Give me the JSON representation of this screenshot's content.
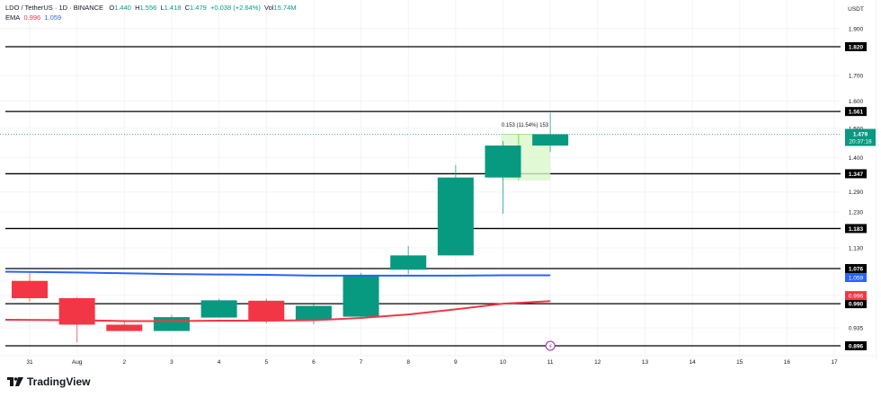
{
  "header": {
    "symbol": "LDO / TetherUS · 1D · BINANCE",
    "open_label": "O",
    "open": "1.440",
    "high_label": "H",
    "high": "1.556",
    "low_label": "L",
    "low": "1.418",
    "close_label": "C",
    "close": "1.479",
    "change": "+0.038 (+2.64%)",
    "vol_label": "Vol",
    "volume": "15.74M",
    "ema_label": "EMA",
    "ema_fast": "0.996",
    "ema_slow": "1.059"
  },
  "price_axis": {
    "currency": "USDT",
    "ticks": [
      "1.900",
      "1.700",
      "1.600",
      "1.500",
      "1.400",
      "1.290",
      "1.230",
      "1.130",
      "1.010",
      "0.935"
    ],
    "current_price": "1.479",
    "countdown": "20:37:18"
  },
  "time_axis": {
    "ticks": [
      "31",
      "Aug",
      "2",
      "3",
      "4",
      "5",
      "6",
      "7",
      "8",
      "9",
      "10",
      "11",
      "12",
      "13",
      "14",
      "15",
      "16",
      "17"
    ]
  },
  "horizontal_levels": [
    {
      "label": "1.820",
      "price": 1.82
    },
    {
      "label": "1.561",
      "price": 1.561
    },
    {
      "label": "1.347",
      "price": 1.347
    },
    {
      "label": "1.183",
      "price": 1.183
    },
    {
      "label": "1.076",
      "price": 1.076
    },
    {
      "label": "0.990",
      "price": 0.99
    },
    {
      "label": "0.896",
      "price": 0.896
    }
  ],
  "ema_badges": {
    "ema_fast": "0.996",
    "ema_slow": "1.059"
  },
  "measure_tool": {
    "label": "0.153 (11.54%) 153"
  },
  "footer": {
    "brand": "TradingView"
  },
  "colors": {
    "up": "#089981",
    "down": "#f23645",
    "ema_fast": "#f23645",
    "ema_slow": "#2962ff",
    "level": "#000000",
    "measure_fill": "#d9f7c9",
    "event_marker": "#9c27b0"
  },
  "chart_data": {
    "type": "candlestick",
    "title": "LDO / TetherUS · 1D · BINANCE",
    "xlabel": "",
    "ylabel": "USDT",
    "scale": "log",
    "ylim": [
      0.87,
      1.98
    ],
    "categories": [
      "31",
      "Aug 1",
      "2",
      "3",
      "4",
      "5",
      "6",
      "7",
      "8",
      "9",
      "10",
      "11"
    ],
    "ohlc": [
      {
        "date": "31",
        "open": 1.045,
        "high": 1.065,
        "low": 0.995,
        "close": 1.003
      },
      {
        "date": "Aug 1",
        "open": 1.003,
        "high": 1.006,
        "low": 0.903,
        "close": 0.942
      },
      {
        "date": "2",
        "open": 0.942,
        "high": 0.952,
        "low": 0.928,
        "close": 0.928
      },
      {
        "date": "3",
        "open": 0.928,
        "high": 0.964,
        "low": 0.928,
        "close": 0.959
      },
      {
        "date": "4",
        "open": 0.958,
        "high": 1.002,
        "low": 0.958,
        "close": 0.998
      },
      {
        "date": "5",
        "open": 0.997,
        "high": 1.002,
        "low": 0.945,
        "close": 0.953
      },
      {
        "date": "6",
        "open": 0.952,
        "high": 0.988,
        "low": 0.943,
        "close": 0.985
      },
      {
        "date": "7",
        "open": 0.96,
        "high": 1.065,
        "low": 0.955,
        "close": 1.06
      },
      {
        "date": "8",
        "open": 1.073,
        "high": 1.135,
        "low": 1.062,
        "close": 1.11
      },
      {
        "date": "9",
        "open": 1.11,
        "high": 1.375,
        "low": 1.11,
        "close": 1.335
      },
      {
        "date": "10",
        "open": 1.335,
        "high": 1.455,
        "low": 1.225,
        "close": 1.44
      },
      {
        "date": "11",
        "open": 1.44,
        "high": 1.556,
        "low": 1.418,
        "close": 1.479
      }
    ],
    "series": [
      {
        "name": "EMA (fast)",
        "color": "#f23645",
        "values": [
          0.953,
          0.952,
          0.95,
          0.95,
          0.951,
          0.951,
          0.952,
          0.957,
          0.965,
          0.977,
          0.99,
          0.996
        ]
      },
      {
        "name": "EMA (slow)",
        "color": "#2962ff",
        "values": [
          1.068,
          1.066,
          1.064,
          1.062,
          1.061,
          1.06,
          1.058,
          1.058,
          1.058,
          1.058,
          1.059,
          1.059
        ]
      }
    ],
    "horizontal_lines": [
      1.82,
      1.561,
      1.347,
      1.183,
      1.076,
      0.99,
      0.896
    ],
    "annotations": [
      {
        "type": "price_range",
        "text": "0.153 (11.54%) 153",
        "from": 1.326,
        "to": 1.479,
        "x_start": "10",
        "x_end": "11"
      },
      {
        "type": "event_marker",
        "x": "11",
        "icon": "lightning"
      }
    ],
    "y_ticks": [
      "1.900",
      "1.820",
      "1.700",
      "1.600",
      "1.561",
      "1.500",
      "1.479",
      "1.400",
      "1.347",
      "1.290",
      "1.230",
      "1.183",
      "1.130",
      "1.076",
      "1.059",
      "1.010",
      "0.996",
      "0.990",
      "0.935",
      "0.896"
    ],
    "grid": true,
    "legend_position": "top-left"
  }
}
